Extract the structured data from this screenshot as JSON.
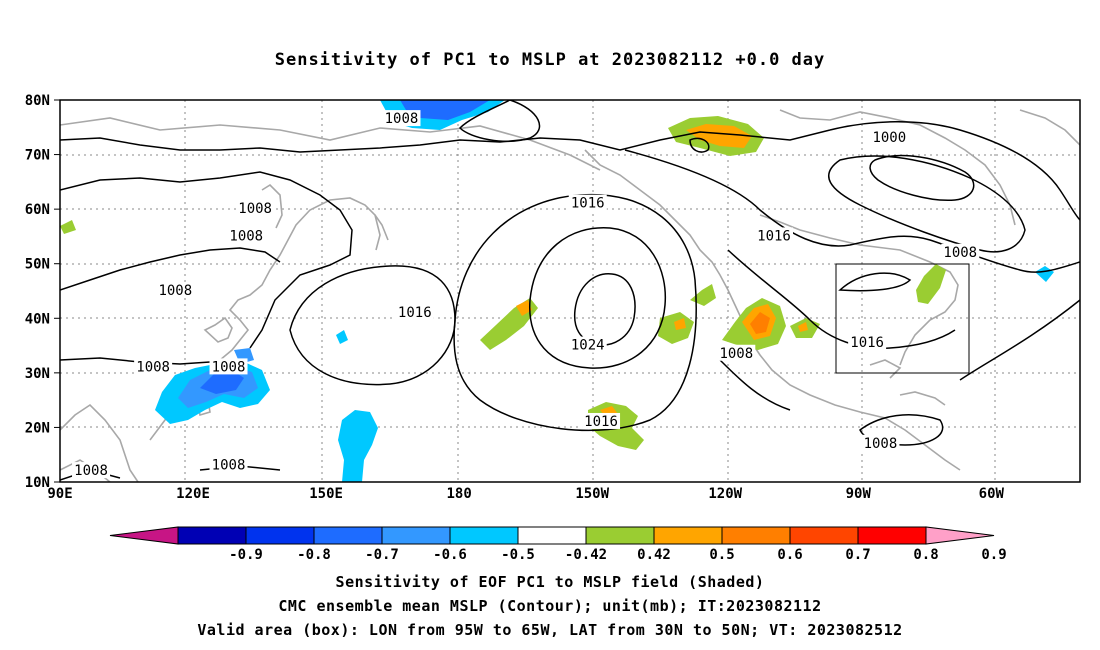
{
  "title": "Sensitivity of PC1 to MSLP at 2023082112 +0.0 day",
  "map": {
    "lat_labels": [
      "80N",
      "70N",
      "60N",
      "50N",
      "40N",
      "30N",
      "20N",
      "10N"
    ],
    "lon_labels": [
      "90E",
      "120E",
      "150E",
      "180",
      "150W",
      "120W",
      "90W",
      "60W"
    ],
    "lon_range": [
      "90E",
      "40W"
    ],
    "lat_range": [
      "10N",
      "80N"
    ],
    "grid": "dotted",
    "valid_box": {
      "lon": [
        "95W",
        "65W"
      ],
      "lat": [
        "30N",
        "50N"
      ]
    },
    "contour_labels": [
      {
        "text": "1008",
        "lon": 167,
        "lat": 76.5
      },
      {
        "text": "1000",
        "lon": -83,
        "lat": 73
      },
      {
        "text": "1008",
        "lon": 134,
        "lat": 60
      },
      {
        "text": "1008",
        "lon": 132,
        "lat": 55
      },
      {
        "text": "1016",
        "lon": -151,
        "lat": 61
      },
      {
        "text": "1016",
        "lon": -109,
        "lat": 55
      },
      {
        "text": "1008",
        "lon": -67,
        "lat": 52
      },
      {
        "text": "1008",
        "lon": 116,
        "lat": 45
      },
      {
        "text": "1016",
        "lon": 170,
        "lat": 41
      },
      {
        "text": "1024",
        "lon": -151,
        "lat": 35
      },
      {
        "text": "1008",
        "lon": -117.5,
        "lat": 33.5
      },
      {
        "text": "1016",
        "lon": -88,
        "lat": 35.5
      },
      {
        "text": "1008",
        "lon": 111,
        "lat": 31
      },
      {
        "text": "1008",
        "lon": 128,
        "lat": 31
      },
      {
        "text": "1016",
        "lon": -148,
        "lat": 21
      },
      {
        "text": "1008",
        "lon": -85,
        "lat": 17
      },
      {
        "text": "1008",
        "lon": 97,
        "lat": 12
      },
      {
        "text": "1008",
        "lon": 128,
        "lat": 13
      }
    ]
  },
  "colorbar": {
    "labels": [
      "-0.9",
      "-0.8",
      "-0.7",
      "-0.6",
      "-0.5",
      "-0.42",
      "0.42",
      "0.5",
      "0.6",
      "0.7",
      "0.8",
      "0.9"
    ],
    "colors": [
      "#0000b4",
      "#0033ee",
      "#1e6cff",
      "#3398ff",
      "#00c8ff",
      "#ffffff",
      "#9acd32",
      "#ffa500",
      "#ff7f00",
      "#ff4500",
      "#ff0000"
    ],
    "left_end_color": "#c71585",
    "right_end_color": "#ffa0c8"
  },
  "captions": [
    "Sensitivity of EOF PC1 to MSLP field (Shaded)",
    "CMC ensemble mean MSLP (Contour); unit(mb); IT:2023082112",
    "Valid area (box): LON from 95W to 65W, LAT from 30N to 50N; VT: 2023082512"
  ]
}
